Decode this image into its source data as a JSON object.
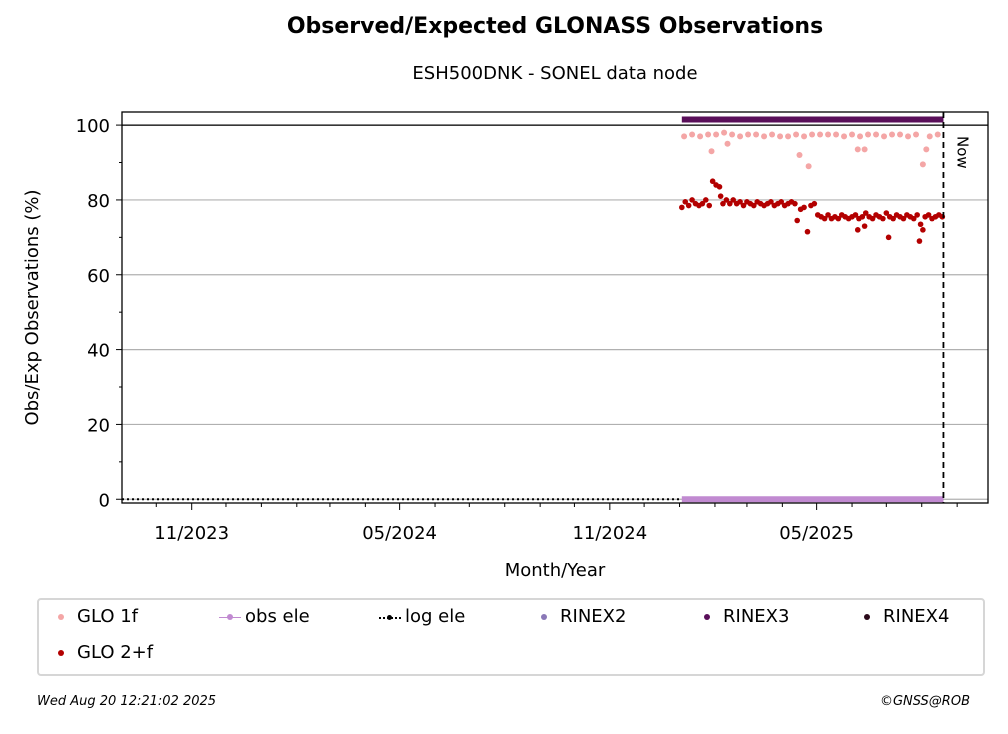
{
  "chart_data": {
    "type": "scatter",
    "title": "Observed/Expected GLONASS Observations",
    "subtitle": "ESH500DNK - SONEL data node",
    "xlabel": "Month/Year",
    "ylabel": "Obs/Exp Observations (%)",
    "x_ticks": [
      "11/2023",
      "05/2024",
      "11/2024",
      "05/2025"
    ],
    "y_ticks": [
      0,
      20,
      40,
      60,
      80,
      100
    ],
    "ylim": [
      -1,
      103.5
    ],
    "xlim": [
      "2023-09-01",
      "2025-09-28"
    ],
    "grid": "horizontal",
    "now_label": "Now",
    "now_date": "2025-08-20",
    "series": [
      {
        "name": "GLO 1f",
        "color": "#f4a6a6",
        "points": [
          [
            "2025-01-05",
            97
          ],
          [
            "2025-01-12",
            97.5
          ],
          [
            "2025-01-19",
            97
          ],
          [
            "2025-01-26",
            97.5
          ],
          [
            "2025-01-29",
            93
          ],
          [
            "2025-02-02",
            97.5
          ],
          [
            "2025-02-09",
            98
          ],
          [
            "2025-02-12",
            95
          ],
          [
            "2025-02-16",
            97.5
          ],
          [
            "2025-02-23",
            97
          ],
          [
            "2025-03-02",
            97.5
          ],
          [
            "2025-03-09",
            97.5
          ],
          [
            "2025-03-16",
            97
          ],
          [
            "2025-03-23",
            97.5
          ],
          [
            "2025-03-30",
            97
          ],
          [
            "2025-04-06",
            97
          ],
          [
            "2025-04-13",
            97.5
          ],
          [
            "2025-04-16",
            92
          ],
          [
            "2025-04-20",
            97
          ],
          [
            "2025-04-24",
            89
          ],
          [
            "2025-04-27",
            97.5
          ],
          [
            "2025-05-04",
            97.5
          ],
          [
            "2025-05-11",
            97.5
          ],
          [
            "2025-05-18",
            97.5
          ],
          [
            "2025-05-25",
            97
          ],
          [
            "2025-06-01",
            97.5
          ],
          [
            "2025-06-06",
            93.5
          ],
          [
            "2025-06-08",
            97
          ],
          [
            "2025-06-12",
            93.5
          ],
          [
            "2025-06-15",
            97.5
          ],
          [
            "2025-06-22",
            97.5
          ],
          [
            "2025-06-29",
            97
          ],
          [
            "2025-07-06",
            97.5
          ],
          [
            "2025-07-13",
            97.5
          ],
          [
            "2025-07-20",
            97
          ],
          [
            "2025-07-27",
            97.5
          ],
          [
            "2025-08-02",
            89.5
          ],
          [
            "2025-08-05",
            93.5
          ],
          [
            "2025-08-08",
            97
          ],
          [
            "2025-08-15",
            97.5
          ]
        ]
      },
      {
        "name": "obs ele",
        "color": "#c18ad1",
        "points": [
          [
            "2025-01-03",
            0
          ],
          [
            "2025-08-20",
            0
          ]
        ]
      },
      {
        "name": "log ele",
        "color": "#000000",
        "points": []
      },
      {
        "name": "RINEX2",
        "color": "#8a78b7",
        "points": []
      },
      {
        "name": "RINEX3",
        "color": "#5a0f5a",
        "points": [
          [
            "2025-01-03",
            101.5
          ],
          [
            "2025-08-20",
            101.5
          ]
        ]
      },
      {
        "name": "RINEX4",
        "color": "#2b0a1a",
        "points": []
      },
      {
        "name": "GLO 2+f",
        "color": "#b30000",
        "points": [
          [
            "2025-01-03",
            78
          ],
          [
            "2025-01-06",
            79.5
          ],
          [
            "2025-01-09",
            78.5
          ],
          [
            "2025-01-12",
            80
          ],
          [
            "2025-01-15",
            79
          ],
          [
            "2025-01-18",
            78.5
          ],
          [
            "2025-01-21",
            79
          ],
          [
            "2025-01-24",
            80
          ],
          [
            "2025-01-27",
            78.5
          ],
          [
            "2025-01-30",
            85
          ],
          [
            "2025-02-02",
            84
          ],
          [
            "2025-02-05",
            83.5
          ],
          [
            "2025-02-06",
            81
          ],
          [
            "2025-02-08",
            79
          ],
          [
            "2025-02-11",
            80
          ],
          [
            "2025-02-14",
            79
          ],
          [
            "2025-02-17",
            80
          ],
          [
            "2025-02-20",
            79
          ],
          [
            "2025-02-23",
            79.5
          ],
          [
            "2025-02-26",
            78.5
          ],
          [
            "2025-03-01",
            79.5
          ],
          [
            "2025-03-04",
            79
          ],
          [
            "2025-03-07",
            78.5
          ],
          [
            "2025-03-10",
            79.5
          ],
          [
            "2025-03-13",
            79
          ],
          [
            "2025-03-16",
            78.5
          ],
          [
            "2025-03-19",
            79
          ],
          [
            "2025-03-22",
            79.5
          ],
          [
            "2025-03-25",
            78.5
          ],
          [
            "2025-03-28",
            79
          ],
          [
            "2025-03-31",
            79.5
          ],
          [
            "2025-04-03",
            78.5
          ],
          [
            "2025-04-06",
            79
          ],
          [
            "2025-04-09",
            79.5
          ],
          [
            "2025-04-12",
            79
          ],
          [
            "2025-04-14",
            74.5
          ],
          [
            "2025-04-17",
            77.5
          ],
          [
            "2025-04-20",
            78
          ],
          [
            "2025-04-23",
            71.5
          ],
          [
            "2025-04-26",
            78.5
          ],
          [
            "2025-04-29",
            79
          ],
          [
            "2025-05-02",
            76
          ],
          [
            "2025-05-05",
            75.5
          ],
          [
            "2025-05-08",
            75
          ],
          [
            "2025-05-11",
            76
          ],
          [
            "2025-05-14",
            75
          ],
          [
            "2025-05-17",
            75.5
          ],
          [
            "2025-05-20",
            75
          ],
          [
            "2025-05-23",
            76
          ],
          [
            "2025-05-26",
            75.5
          ],
          [
            "2025-05-29",
            75
          ],
          [
            "2025-06-01",
            75.5
          ],
          [
            "2025-06-04",
            76
          ],
          [
            "2025-06-06",
            72
          ],
          [
            "2025-06-07",
            75
          ],
          [
            "2025-06-10",
            75.5
          ],
          [
            "2025-06-12",
            73
          ],
          [
            "2025-06-13",
            76.5
          ],
          [
            "2025-06-16",
            75.5
          ],
          [
            "2025-06-19",
            75
          ],
          [
            "2025-06-22",
            76
          ],
          [
            "2025-06-25",
            75.5
          ],
          [
            "2025-06-28",
            75
          ],
          [
            "2025-07-01",
            76.5
          ],
          [
            "2025-07-03",
            70
          ],
          [
            "2025-07-04",
            75.5
          ],
          [
            "2025-07-07",
            75
          ],
          [
            "2025-07-10",
            76
          ],
          [
            "2025-07-13",
            75.5
          ],
          [
            "2025-07-16",
            75
          ],
          [
            "2025-07-19",
            76
          ],
          [
            "2025-07-22",
            75.5
          ],
          [
            "2025-07-25",
            75
          ],
          [
            "2025-07-28",
            76
          ],
          [
            "2025-07-30",
            69
          ],
          [
            "2025-07-31",
            73.5
          ],
          [
            "2025-08-02",
            72
          ],
          [
            "2025-08-04",
            75.5
          ],
          [
            "2025-08-07",
            76
          ],
          [
            "2025-08-10",
            75
          ],
          [
            "2025-08-13",
            75.5
          ],
          [
            "2025-08-16",
            76
          ],
          [
            "2025-08-19",
            75.5
          ]
        ]
      }
    ]
  },
  "legend": [
    {
      "label": "GLO 1f",
      "marker": "dot",
      "color": "#f4a6a6"
    },
    {
      "label": "obs ele",
      "marker": "line-dot",
      "color": "#c18ad1"
    },
    {
      "label": "log ele",
      "marker": "dotted-line",
      "color": "#000000"
    },
    {
      "label": "RINEX2",
      "marker": "dot",
      "color": "#8a78b7"
    },
    {
      "label": "RINEX3",
      "marker": "dot",
      "color": "#5a0f5a"
    },
    {
      "label": "RINEX4",
      "marker": "dot",
      "color": "#2b0a1a"
    },
    {
      "label": "GLO 2+f",
      "marker": "dot",
      "color": "#b30000"
    }
  ],
  "footer": {
    "timestamp": "Wed Aug 20 12:21:02 2025",
    "credit": "©GNSS@ROB"
  }
}
